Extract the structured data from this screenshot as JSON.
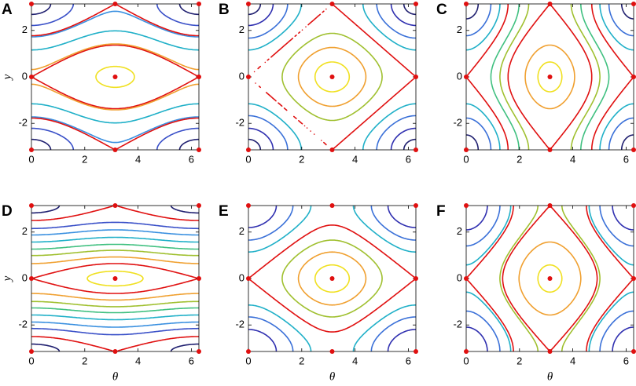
{
  "chart_data": [
    {
      "type": "contour",
      "title": "A",
      "ylabel": "y",
      "xlim": [
        0,
        6.2832
      ],
      "ylim": [
        -3.1416,
        3.1416
      ],
      "xticks": [
        0,
        2,
        4,
        6
      ],
      "yticks": [
        -2,
        0,
        2
      ],
      "field": {
        "cos_theta": 0.4,
        "cos_y": -1
      },
      "series": [
        {
          "level": -1.3,
          "color": "#f0e020"
        },
        {
          "level": -0.6,
          "color": "#e01010"
        },
        {
          "level": -0.55,
          "color": "#f0a030"
        },
        {
          "level": 0,
          "color": "#20b0c8"
        },
        {
          "level": 0.55,
          "color": "#3a90e0"
        },
        {
          "level": 0.6,
          "color": "#e01010"
        },
        {
          "level": 1.0,
          "color": "#3a50c8"
        },
        {
          "level": 1.3,
          "color": "#202070"
        }
      ],
      "points": {
        "x": [
          0,
          3.1416,
          6.2832,
          0,
          3.1416,
          6.2832,
          0,
          3.1416,
          6.2832
        ],
        "y": [
          3.1416,
          3.1416,
          3.1416,
          0,
          0,
          0,
          -3.1416,
          -3.1416,
          -3.1416
        ]
      }
    },
    {
      "type": "contour",
      "title": "B",
      "xlim": [
        0,
        6.2832
      ],
      "ylim": [
        -3.1416,
        3.1416
      ],
      "xticks": [
        0,
        2,
        4,
        6
      ],
      "yticks": [
        -2,
        0,
        2
      ],
      "field": {
        "cos_theta": 1,
        "cos_y": -1
      },
      "series": [
        {
          "level": -1.8,
          "color": "#f0e020"
        },
        {
          "level": -1.3,
          "color": "#f0a030"
        },
        {
          "level": -0.7,
          "color": "#a0c030"
        },
        {
          "level": 0,
          "color": "#e01010"
        },
        {
          "level": 0.6,
          "color": "#20b0c8"
        },
        {
          "level": 1.1,
          "color": "#3a70d8"
        },
        {
          "level": 1.6,
          "color": "#3030b0"
        },
        {
          "level": 1.9,
          "color": "#202070"
        }
      ],
      "points": {
        "x": [
          0,
          3.1416,
          6.2832,
          0,
          3.1416,
          6.2832,
          0,
          3.1416,
          6.2832
        ],
        "y": [
          3.1416,
          3.1416,
          3.1416,
          0,
          0,
          0,
          -3.1416,
          -3.1416,
          -3.1416
        ]
      }
    },
    {
      "type": "contour",
      "title": "C",
      "xlim": [
        0,
        6.2832
      ],
      "ylim": [
        -3.1416,
        3.1416
      ],
      "xticks": [
        0,
        2,
        4,
        6
      ],
      "yticks": [
        -2,
        0,
        2
      ],
      "field": {
        "cos_theta": 1,
        "cos_y": -0.5
      },
      "series": [
        {
          "level": -1.4,
          "color": "#f0e020"
        },
        {
          "level": -1.1,
          "color": "#f0a030"
        },
        {
          "level": -0.5,
          "color": "#e01010"
        },
        {
          "level": -0.2,
          "color": "#a0c030"
        },
        {
          "level": 0.1,
          "color": "#40c080"
        },
        {
          "level": 0.5,
          "color": "#e01010"
        },
        {
          "level": 0.8,
          "color": "#20b0c8"
        },
        {
          "level": 1.1,
          "color": "#3a70d8"
        },
        {
          "level": 1.4,
          "color": "#202070"
        }
      ],
      "points": {
        "x": [
          0,
          3.1416,
          6.2832,
          0,
          3.1416,
          6.2832,
          0,
          3.1416,
          6.2832
        ],
        "y": [
          3.1416,
          3.1416,
          3.1416,
          0,
          0,
          0,
          -3.1416,
          -3.1416,
          -3.1416
        ]
      }
    },
    {
      "type": "contour",
      "title": "D",
      "ylabel": "y",
      "xlabel": "θ",
      "xlim": [
        0,
        6.2832
      ],
      "ylim": [
        -3.1416,
        3.1416
      ],
      "xticks": [
        0,
        2,
        4,
        6
      ],
      "yticks": [
        -2,
        0,
        2
      ],
      "field": {
        "cos_theta": 0.1,
        "cos_y": -1
      },
      "series": [
        {
          "level": -1.05,
          "color": "#f0e020"
        },
        {
          "level": -0.9,
          "color": "#e01010"
        },
        {
          "level": -0.7,
          "color": "#f0a030"
        },
        {
          "level": -0.45,
          "color": "#a0c030"
        },
        {
          "level": -0.2,
          "color": "#40c080"
        },
        {
          "level": 0.1,
          "color": "#20b0c8"
        },
        {
          "level": 0.4,
          "color": "#3a90e0"
        },
        {
          "level": 0.65,
          "color": "#3a50c8"
        },
        {
          "level": 0.9,
          "color": "#e01010"
        },
        {
          "level": 1.05,
          "color": "#202070"
        }
      ],
      "points": {
        "x": [
          0,
          3.1416,
          6.2832,
          0,
          3.1416,
          6.2832,
          0,
          3.1416,
          6.2832
        ],
        "y": [
          3.1416,
          3.1416,
          3.1416,
          0,
          0,
          0,
          -3.1416,
          -3.1416,
          -3.1416
        ]
      }
    },
    {
      "type": "contour",
      "title": "E",
      "xlabel": "θ",
      "xlim": [
        0,
        6.2832
      ],
      "ylim": [
        -3.1416,
        3.1416
      ],
      "xticks": [
        0,
        2,
        4,
        6
      ],
      "yticks": [
        -2,
        0,
        2
      ],
      "field": {
        "cos_theta": 1,
        "cos_y": -1.2
      },
      "series": [
        {
          "level": -2.0,
          "color": "#f0e020"
        },
        {
          "level": -1.5,
          "color": "#f0a030"
        },
        {
          "level": -0.9,
          "color": "#a0c030"
        },
        {
          "level": -0.2,
          "color": "#e01010"
        },
        {
          "level": 0.5,
          "color": "#20b0c8"
        },
        {
          "level": 1.1,
          "color": "#3a70d8"
        },
        {
          "level": 1.7,
          "color": "#3030b0"
        }
      ],
      "points": {
        "x": [
          0,
          3.1416,
          6.2832,
          0,
          3.1416,
          6.2832,
          0,
          3.1416,
          6.2832
        ],
        "y": [
          3.1416,
          3.1416,
          3.1416,
          0,
          0,
          0,
          -3.1416,
          -3.1416,
          -3.1416
        ]
      }
    },
    {
      "type": "contour",
      "title": "F",
      "xlabel": "θ",
      "xlim": [
        0,
        6.2832
      ],
      "ylim": [
        -3.1416,
        3.1416
      ],
      "xticks": [
        0,
        2,
        4,
        6
      ],
      "yticks": [
        -2,
        0,
        2
      ],
      "field": {
        "cos_theta": 1,
        "cos_y": -0.6
      },
      "series": [
        {
          "level": -1.5,
          "color": "#f0e020"
        },
        {
          "level": -1.0,
          "color": "#f0a030"
        },
        {
          "level": -0.4,
          "color": "#e01010"
        },
        {
          "level": -0.3,
          "color": "#a0c030"
        },
        {
          "level": 0.4,
          "color": "#e01010"
        },
        {
          "level": 0.5,
          "color": "#20b0c8"
        },
        {
          "level": 0.9,
          "color": "#3a70d8"
        },
        {
          "level": 1.3,
          "color": "#3030b0"
        }
      ],
      "points": {
        "x": [
          0,
          3.1416,
          6.2832,
          0,
          3.1416,
          6.2832,
          0,
          3.1416,
          6.2832
        ],
        "y": [
          3.1416,
          3.1416,
          3.1416,
          0,
          0,
          0,
          -3.1416,
          -3.1416,
          -3.1416
        ]
      }
    }
  ]
}
